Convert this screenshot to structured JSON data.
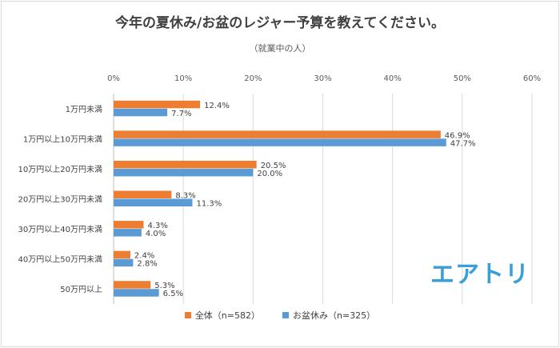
{
  "chart_data": {
    "type": "bar",
    "orientation": "horizontal",
    "title": "今年の夏休み/お盆のレジャー予算を教えてください。",
    "subtitle": "（就業中の人）",
    "categories": [
      "1万円未満",
      "1万円以上10万円未満",
      "10万円以上20万円未満",
      "20万円以上30万円未満",
      "30万円以上40万円未満",
      "40万円以上50万円未満",
      "50万円以上"
    ],
    "series": [
      {
        "name": "全体（n=582）",
        "color": "#ed7d31",
        "values": [
          12.4,
          46.9,
          20.5,
          8.3,
          4.3,
          2.4,
          5.3
        ],
        "labels": [
          "12.4%",
          "46.9%",
          "20.5%",
          "8.3%",
          "4.3%",
          "2.4%",
          "5.3%"
        ]
      },
      {
        "name": "お盆休み（n=325）",
        "color": "#5b9bd5",
        "values": [
          7.7,
          47.7,
          20.0,
          11.3,
          4.0,
          2.8,
          6.5
        ],
        "labels": [
          "7.7%",
          "47.7%",
          "20.0%",
          "11.3%",
          "4.0%",
          "2.8%",
          "6.5%"
        ]
      }
    ],
    "xlim": [
      0,
      60
    ],
    "xticks": [
      "0%",
      "10%",
      "20%",
      "30%",
      "40%",
      "50%",
      "60%"
    ],
    "xaxis_position": "top",
    "grid": true,
    "legend": "bottom"
  },
  "logo": {
    "text": "エアトリ",
    "color": "#3a9fd6"
  }
}
